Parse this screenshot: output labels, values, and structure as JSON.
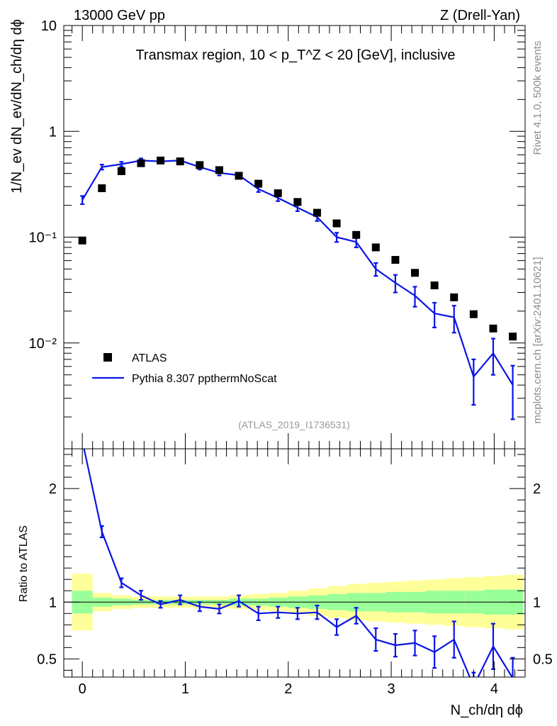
{
  "header": {
    "left": "13000 GeV pp",
    "right": "Z (Drell-Yan)"
  },
  "side_labels": {
    "rivet": "Rivet 4.1.0,  500k events",
    "mcplots": "mcplots.cern.ch [arXiv:2401.10621]"
  },
  "chart_data": [
    {
      "type": "scatter",
      "panel": "main",
      "title": "Transmax region, 10 < p_T^Z < 20 [GeV], inclusive",
      "ylabel": "1/N_ev dN_ev/dN_ch/dη dϕ",
      "yscale": "log",
      "ylim": [
        0.001,
        10
      ],
      "xlim": [
        -0.18,
        4.3
      ],
      "y_tick_labels": [
        "10",
        "1",
        "10⁻¹",
        "10⁻²"
      ],
      "watermark": "(ATLAS_2019_I1736531)",
      "legend": {
        "position": "bottom-left",
        "entries": [
          "ATLAS",
          "Pythia 8.307 ppthermNoScat"
        ]
      },
      "x": [
        0.0,
        0.19,
        0.38,
        0.57,
        0.76,
        0.95,
        1.14,
        1.33,
        1.52,
        1.71,
        1.9,
        2.09,
        2.28,
        2.47,
        2.66,
        2.85,
        3.04,
        3.23,
        3.42,
        3.61,
        3.8,
        3.99,
        4.18
      ],
      "series": [
        {
          "name": "ATLAS",
          "values": [
            0.093,
            0.29,
            0.42,
            0.5,
            0.53,
            0.52,
            0.48,
            0.43,
            0.38,
            0.32,
            0.26,
            0.215,
            0.17,
            0.135,
            0.105,
            0.08,
            0.061,
            0.046,
            0.035,
            0.027,
            0.0187,
            0.0137,
            0.0115
          ]
        },
        {
          "name": "Pythia 8.307 ppthermNoScat",
          "values": [
            0.225,
            0.46,
            0.49,
            0.53,
            0.52,
            0.53,
            0.46,
            0.405,
            0.385,
            0.285,
            0.235,
            0.19,
            0.155,
            0.1,
            0.09,
            0.05,
            0.037,
            0.028,
            0.019,
            0.0175,
            0.0048,
            0.008,
            0.004
          ],
          "err": [
            0.02,
            0.025,
            0.025,
            0.025,
            0.025,
            0.025,
            0.025,
            0.022,
            0.02,
            0.018,
            0.016,
            0.014,
            0.013,
            0.01,
            0.01,
            0.007,
            0.007,
            0.006,
            0.005,
            0.005,
            0.0022,
            0.003,
            0.0021
          ]
        }
      ]
    },
    {
      "type": "line",
      "panel": "ratio",
      "ylabel": "Ratio to ATLAS",
      "ylim": [
        0.34,
        2.35
      ],
      "xlabel": "N_ch/dη dϕ",
      "x_tick_labels": [
        "0",
        "1",
        "2",
        "3",
        "4"
      ],
      "x_ticks": [
        0,
        1,
        2,
        3,
        4
      ],
      "y_ticks": [
        0.5,
        1,
        2
      ],
      "y_tick_labels": [
        "0.5",
        "1",
        "2"
      ],
      "reference_line": 1,
      "bin_edges": [
        -0.1,
        0.1,
        0.29,
        0.48,
        0.67,
        0.86,
        1.05,
        1.24,
        1.43,
        1.62,
        1.81,
        2.0,
        2.19,
        2.38,
        2.57,
        2.76,
        2.95,
        3.14,
        3.33,
        3.52,
        3.71,
        3.9,
        4.09,
        4.28
      ],
      "band_yellow": [
        0.25,
        0.08,
        0.06,
        0.05,
        0.05,
        0.05,
        0.05,
        0.05,
        0.06,
        0.07,
        0.08,
        0.1,
        0.12,
        0.14,
        0.16,
        0.17,
        0.18,
        0.19,
        0.2,
        0.21,
        0.22,
        0.23,
        0.24
      ],
      "band_green": [
        0.1,
        0.04,
        0.03,
        0.02,
        0.02,
        0.02,
        0.02,
        0.02,
        0.03,
        0.03,
        0.04,
        0.05,
        0.06,
        0.07,
        0.08,
        0.08,
        0.09,
        0.09,
        0.1,
        0.1,
        0.1,
        0.11,
        0.11
      ],
      "x": [
        0.0,
        0.19,
        0.38,
        0.57,
        0.76,
        0.95,
        1.14,
        1.33,
        1.52,
        1.71,
        1.9,
        2.09,
        2.28,
        2.47,
        2.66,
        2.85,
        3.04,
        3.23,
        3.42,
        3.61,
        3.8,
        3.99,
        4.18
      ],
      "series": [
        {
          "name": "Pythia 8.307 ppthermNoScat / ATLAS",
          "values": [
            2.42,
            1.62,
            1.17,
            1.06,
            0.98,
            1.02,
            0.96,
            0.94,
            1.01,
            0.9,
            0.91,
            0.9,
            0.91,
            0.78,
            0.88,
            0.67,
            0.62,
            0.64,
            0.56,
            0.67,
            0.26,
            0.61,
            0.33
          ],
          "err": [
            0.05,
            0.05,
            0.04,
            0.04,
            0.03,
            0.04,
            0.04,
            0.04,
            0.05,
            0.06,
            0.05,
            0.05,
            0.06,
            0.07,
            0.07,
            0.1,
            0.1,
            0.11,
            0.14,
            0.16,
            0.12,
            0.2,
            0.18
          ]
        }
      ]
    }
  ]
}
